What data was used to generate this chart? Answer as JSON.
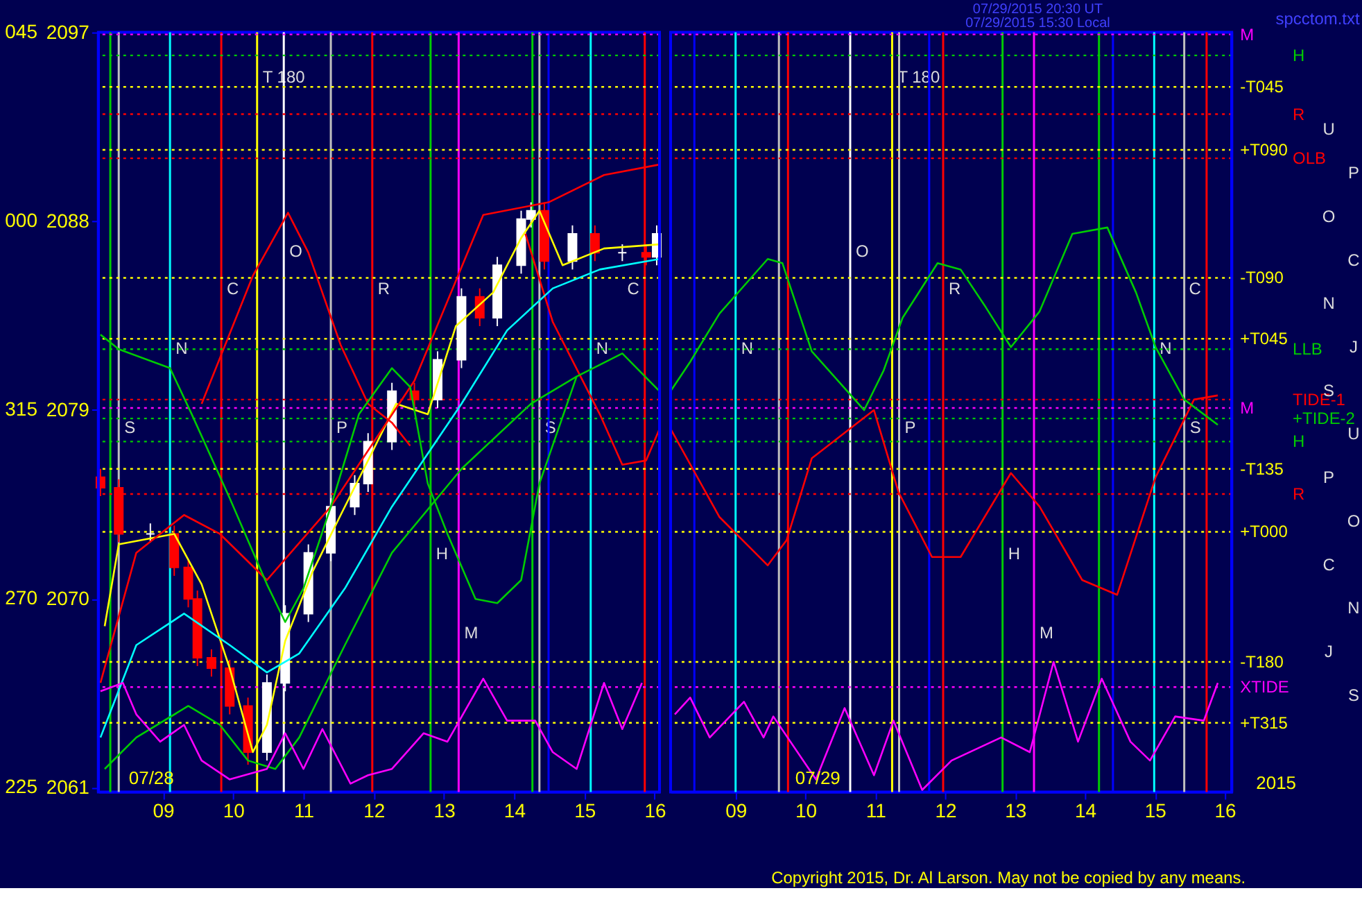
{
  "chart_data": [
    {
      "type": "candlestick",
      "x": [
        8.11,
        8.37,
        8.82,
        9.16,
        9.36,
        9.49,
        9.69,
        9.95,
        10.21,
        10.48,
        10.74,
        11.07,
        11.39,
        11.73,
        11.92,
        12.26,
        12.58,
        12.91,
        13.25,
        13.51,
        13.76,
        14.1,
        14.24,
        14.43,
        14.83,
        15.15,
        15.54,
        15.88,
        16.03
      ],
      "ohlc": [
        [
          2075.8,
          2076.2,
          2074.9,
          2075.3
        ],
        [
          2075.3,
          2075.7,
          2072.7,
          2073.1
        ],
        [
          2073.1,
          2073.6,
          2072.7,
          2073.1
        ],
        [
          2073.1,
          2073.5,
          2071.1,
          2071.5
        ],
        [
          2071.5,
          2071.9,
          2069.6,
          2070.0
        ],
        [
          2070.0,
          2070.4,
          2066.8,
          2067.2
        ],
        [
          2067.2,
          2067.6,
          2066.3,
          2066.7
        ],
        [
          2066.7,
          2067.1,
          2064.5,
          2064.9
        ],
        [
          2064.9,
          2065.3,
          2062.1,
          2062.7
        ],
        [
          2062.7,
          2066.4,
          2062.3,
          2066.0
        ],
        [
          2066.0,
          2069.7,
          2065.6,
          2069.3
        ],
        [
          2069.3,
          2072.6,
          2068.9,
          2072.2
        ],
        [
          2072.2,
          2074.8,
          2071.8,
          2074.4
        ],
        [
          2074.4,
          2075.9,
          2074.0,
          2075.5
        ],
        [
          2075.5,
          2077.9,
          2075.1,
          2077.5
        ],
        [
          2077.5,
          2080.3,
          2077.1,
          2079.9
        ],
        [
          2079.9,
          2080.3,
          2079.1,
          2079.5
        ],
        [
          2079.5,
          2081.8,
          2079.1,
          2081.4
        ],
        [
          2081.4,
          2084.8,
          2081.0,
          2084.4
        ],
        [
          2084.4,
          2084.8,
          2083.0,
          2083.4
        ],
        [
          2083.4,
          2086.3,
          2083.0,
          2085.9
        ],
        [
          2085.9,
          2088.5,
          2085.5,
          2088.1
        ],
        [
          2088.1,
          2088.9,
          2087.7,
          2088.5
        ],
        [
          2088.5,
          2088.9,
          2085.7,
          2086.1
        ],
        [
          2086.1,
          2087.8,
          2085.7,
          2087.4
        ],
        [
          2087.4,
          2087.8,
          2086.1,
          2086.5
        ],
        [
          2086.5,
          2086.9,
          2086.1,
          2086.5
        ],
        [
          2086.5,
          2086.9,
          2085.9,
          2086.3
        ],
        [
          2086.3,
          2087.8,
          2085.9,
          2087.4
        ]
      ],
      "xlim": [
        8.08,
        16.07
      ],
      "ylim": [
        2060.8,
        2097
      ],
      "xticks": [
        {
          "value": 9,
          "label": "09"
        },
        10,
        11,
        12,
        13,
        14,
        15,
        16
      ],
      "yticks": [
        2061,
        2070,
        2079,
        2088,
        2097
      ],
      "series": [
        {
          "type": "line",
          "color": "#ffff00",
          "x": [
            8.17,
            8.37,
            9.16,
            9.55,
            9.95,
            10.28,
            10.48,
            10.74,
            11.13,
            11.53,
            11.92,
            12.32,
            12.77,
            13.17,
            13.7,
            14.1,
            14.36,
            14.69,
            15.28,
            16.07
          ],
          "values": [
            2068.7,
            2072.6,
            2073.1,
            2070.7,
            2066.7,
            2062.7,
            2064.0,
            2068.0,
            2071.3,
            2074.0,
            2076.6,
            2079.3,
            2078.8,
            2083.0,
            2084.6,
            2087.2,
            2088.5,
            2085.9,
            2086.7,
            2086.9
          ]
        },
        {
          "type": "line",
          "color": "#ff0000",
          "x": [
            8.11,
            8.62,
            9.3,
            9.81,
            10.48,
            11.39,
            12.58,
            13.56,
            14.49,
            15.28,
            16.07
          ],
          "values": [
            2066.0,
            2072.2,
            2074.0,
            2073.1,
            2070.9,
            2074.4,
            2080.4,
            2088.3,
            2088.9,
            2090.2,
            2090.7
          ]
        },
        {
          "type": "line",
          "color": "#ff0000",
          "x": [
            9.55,
            10.28,
            10.78,
            11.07,
            11.53,
            11.92,
            12.26,
            12.52
          ],
          "values": [
            2079.3,
            2085.4,
            2088.4,
            2086.5,
            2082.1,
            2079.3,
            2078.4,
            2077.3
          ]
        },
        {
          "type": "line",
          "color": "#ff0000",
          "x": [
            14.16,
            14.55,
            15.22,
            15.54,
            15.88,
            16.07
          ],
          "values": [
            2087.4,
            2083.2,
            2078.8,
            2076.4,
            2076.6,
            2078.1
          ]
        },
        {
          "type": "line",
          "color": "#00cc00",
          "x": [
            8.11,
            8.37,
            9.1,
            9.41,
            9.95,
            10.48,
            10.74,
            11.0,
            11.39,
            11.79,
            12.26,
            12.52,
            12.77,
            13.05,
            13.45,
            13.76,
            14.1,
            14.36,
            14.89,
            15.54,
            16.07
          ],
          "values": [
            2082.6,
            2081.9,
            2081.0,
            2078.8,
            2074.8,
            2070.7,
            2068.9,
            2070.5,
            2074.4,
            2078.8,
            2081.0,
            2080.1,
            2075.5,
            2073.1,
            2070.0,
            2069.8,
            2070.9,
            2075.5,
            2080.6,
            2081.7,
            2079.9
          ]
        },
        {
          "type": "line",
          "color": "#00cc00",
          "x": [
            8.17,
            8.62,
            9.36,
            9.81,
            10.21,
            10.6,
            10.94,
            11.59,
            12.26,
            13.25,
            14.24,
            14.89
          ],
          "values": [
            2061.9,
            2063.4,
            2064.9,
            2064.0,
            2062.3,
            2061.9,
            2063.4,
            2067.8,
            2072.2,
            2076.2,
            2079.3,
            2080.6
          ]
        },
        {
          "type": "line",
          "color": "#00ffff",
          "x": [
            8.11,
            8.62,
            9.3,
            9.95,
            10.48,
            10.94,
            11.59,
            12.26,
            13.25,
            13.9,
            14.55,
            15.22,
            16.07
          ],
          "values": [
            2063.4,
            2067.8,
            2069.3,
            2067.8,
            2066.5,
            2067.4,
            2070.5,
            2074.4,
            2079.3,
            2082.8,
            2084.8,
            2085.7,
            2086.2
          ]
        },
        {
          "type": "line",
          "color": "#ff00ff",
          "x": [
            8.11,
            8.43,
            8.62,
            8.96,
            9.3,
            9.55,
            9.95,
            10.48,
            10.74,
            11.0,
            11.27,
            11.67,
            11.92,
            12.26,
            12.71,
            13.05,
            13.56,
            13.9,
            14.3,
            14.55,
            14.89,
            15.28,
            15.54,
            15.82
          ],
          "values": [
            2065.6,
            2066.0,
            2064.5,
            2063.2,
            2064.0,
            2062.3,
            2061.4,
            2061.9,
            2063.6,
            2061.9,
            2063.8,
            2061.2,
            2061.6,
            2061.9,
            2063.6,
            2063.2,
            2066.2,
            2064.2,
            2064.2,
            2062.7,
            2061.9,
            2066.0,
            2063.8,
            2066.0
          ]
        }
      ],
      "ref_lines": [
        {
          "axis": "x",
          "value": 8.25,
          "color": "#00cc00",
          "line_style": "solid"
        },
        {
          "axis": "x",
          "value": 8.37,
          "color": "#c0c0c0",
          "line_style": "solid",
          "label": "S"
        },
        {
          "axis": "x",
          "value": 9.1,
          "color": "#00ffff",
          "line_style": "solid",
          "label": "N"
        },
        {
          "axis": "x",
          "value": 9.83,
          "color": "#ff0000",
          "line_style": "solid",
          "label": "C"
        },
        {
          "axis": "x",
          "value": 10.34,
          "color": "#ffff00",
          "line_style": "solid",
          "label": "T  180"
        },
        {
          "axis": "x",
          "value": 10.72,
          "color": "#ffffff",
          "line_style": "solid",
          "label": "O"
        },
        {
          "axis": "x",
          "value": 11.39,
          "color": "#c0c0c0",
          "line_style": "solid",
          "label": "P"
        },
        {
          "axis": "x",
          "value": 11.98,
          "color": "#ff0000",
          "line_style": "solid",
          "label": "R"
        },
        {
          "axis": "x",
          "value": 12.81,
          "color": "#00cc00",
          "line_style": "solid",
          "label": "H"
        },
        {
          "axis": "x",
          "value": 13.21,
          "color": "#ff00ff",
          "line_style": "solid",
          "label": "M"
        },
        {
          "axis": "x",
          "value": 14.26,
          "color": "#00cc00",
          "line_style": "solid"
        },
        {
          "axis": "x",
          "value": 14.36,
          "color": "#c0c0c0",
          "line_style": "solid",
          "label": "S"
        },
        {
          "axis": "x",
          "value": 14.49,
          "color": "#0000ff",
          "line_style": "solid"
        },
        {
          "axis": "x",
          "value": 15.09,
          "color": "#00ffff",
          "line_style": "solid",
          "label": "N"
        },
        {
          "axis": "x",
          "value": 15.86,
          "color": "#ff0000",
          "line_style": "solid",
          "label": "C"
        },
        {
          "axis": "y",
          "value": 2096.9,
          "color": "#ff00ff",
          "line_style": "dotted"
        },
        {
          "axis": "y",
          "value": 2095.9,
          "color": "#00cc00",
          "line_style": "dotted"
        },
        {
          "axis": "y",
          "value": 2094.4,
          "color": "#ffff00",
          "line_style": "dotted"
        },
        {
          "axis": "y",
          "value": 2093.1,
          "color": "#ff0000",
          "line_style": "dotted"
        },
        {
          "axis": "y",
          "value": 2091.4,
          "color": "#ffff00",
          "line_style": "dotted"
        },
        {
          "axis": "y",
          "value": 2091.0,
          "color": "#ff0000",
          "line_style": "dotted"
        },
        {
          "axis": "y",
          "value": 2085.3,
          "color": "#ffff00",
          "line_style": "dotted"
        },
        {
          "axis": "y",
          "value": 2082.4,
          "color": "#ffff00",
          "line_style": "dotted"
        },
        {
          "axis": "y",
          "value": 2081.9,
          "color": "#00cc00",
          "line_style": "dotted"
        },
        {
          "axis": "y",
          "value": 2079.1,
          "color": "#ff00ff",
          "line_style": "dotted"
        },
        {
          "axis": "y",
          "value": 2079.5,
          "color": "#ff0000",
          "line_style": "dotted"
        },
        {
          "axis": "y",
          "value": 2078.6,
          "color": "#00cc00",
          "line_style": "dotted"
        },
        {
          "axis": "y",
          "value": 2077.5,
          "color": "#00cc00",
          "line_style": "dotted"
        },
        {
          "axis": "y",
          "value": 2076.2,
          "color": "#ffff00",
          "line_style": "dotted"
        },
        {
          "axis": "y",
          "value": 2075.0,
          "color": "#ff0000",
          "line_style": "dotted"
        },
        {
          "axis": "y",
          "value": 2073.2,
          "color": "#ffff00",
          "line_style": "dotted"
        },
        {
          "axis": "y",
          "value": 2067.0,
          "color": "#ffff00",
          "line_style": "dotted"
        },
        {
          "axis": "y",
          "value": 2065.8,
          "color": "#ff00ff",
          "line_style": "dotted"
        },
        {
          "axis": "y",
          "value": 2064.1,
          "color": "#ffff00",
          "line_style": "dotted"
        }
      ],
      "annotations": [
        "225",
        "270",
        "315",
        "000",
        "045",
        "07/28"
      ]
    },
    {
      "type": "line",
      "xlim": [
        8.07,
        16.1
      ],
      "ylim": [
        2060.8,
        2097
      ],
      "tick_labels": "x",
      "xticks": [
        {
          "value": 9,
          "label": "09"
        },
        10,
        11,
        12,
        13,
        14,
        15,
        16
      ],
      "series": [
        {
          "type": "line",
          "color": "#ff0000",
          "x": [
            8.07,
            8.77,
            9.46,
            9.73,
            10.09,
            10.98,
            11.33,
            11.81,
            12.22,
            12.94,
            13.35,
            13.96,
            14.46,
            15.01,
            15.56,
            15.9
          ],
          "values": [
            2078.1,
            2073.9,
            2071.6,
            2072.8,
            2076.7,
            2079.0,
            2075.1,
            2072.0,
            2072.0,
            2076.0,
            2074.4,
            2070.9,
            2070.2,
            2075.8,
            2079.5,
            2079.7
          ]
        },
        {
          "type": "line",
          "color": "#00cc00",
          "x": [
            8.07,
            8.35,
            8.77,
            9.46,
            9.67,
            10.09,
            10.84,
            11.12,
            11.39,
            11.89,
            12.22,
            12.58,
            12.94,
            13.35,
            13.82,
            14.32,
            14.73,
            15.01,
            15.42,
            15.9
          ],
          "values": [
            2079.9,
            2081.3,
            2083.6,
            2086.2,
            2086.0,
            2081.8,
            2079.0,
            2080.9,
            2083.4,
            2086.0,
            2085.7,
            2083.9,
            2082.0,
            2083.7,
            2087.4,
            2087.7,
            2084.6,
            2082.0,
            2079.5,
            2078.3
          ]
        },
        {
          "type": "line",
          "color": "#ff00ff",
          "x": [
            8.13,
            8.35,
            8.63,
            9.12,
            9.4,
            9.54,
            10.15,
            10.56,
            10.98,
            11.26,
            11.67,
            12.09,
            12.8,
            13.21,
            13.55,
            13.9,
            14.24,
            14.65,
            14.93,
            15.29,
            15.7,
            15.9
          ],
          "values": [
            2064.5,
            2065.3,
            2063.4,
            2065.1,
            2063.4,
            2064.4,
            2061.4,
            2064.8,
            2061.6,
            2064.2,
            2060.9,
            2062.3,
            2063.4,
            2062.7,
            2067.0,
            2063.2,
            2066.2,
            2063.2,
            2062.3,
            2064.4,
            2064.2,
            2066.0
          ]
        }
      ],
      "ref_lines": [
        {
          "axis": "x",
          "value": 8.41,
          "color": "#0000ff",
          "line_style": "solid"
        },
        {
          "axis": "x",
          "value": 9.0,
          "color": "#00ffff",
          "line_style": "solid",
          "label": "N"
        },
        {
          "axis": "x",
          "value": 9.62,
          "color": "#c0c0c0",
          "line_style": "solid"
        },
        {
          "axis": "x",
          "value": 9.75,
          "color": "#ff0000",
          "line_style": "solid"
        },
        {
          "axis": "x",
          "value": 10.64,
          "color": "#ffffff",
          "line_style": "solid",
          "label": "O"
        },
        {
          "axis": "x",
          "value": 11.24,
          "color": "#ffff00",
          "line_style": "solid",
          "label": "T  180"
        },
        {
          "axis": "x",
          "value": 11.34,
          "color": "#c0c0c0",
          "line_style": "solid",
          "label": "P"
        },
        {
          "axis": "x",
          "value": 11.77,
          "color": "#0000ff",
          "line_style": "solid"
        },
        {
          "axis": "x",
          "value": 11.97,
          "color": "#ff0000",
          "line_style": "solid",
          "label": "R"
        },
        {
          "axis": "x",
          "value": 12.82,
          "color": "#00cc00",
          "line_style": "solid",
          "label": "H"
        },
        {
          "axis": "x",
          "value": 13.27,
          "color": "#ff00ff",
          "line_style": "solid",
          "label": "M"
        },
        {
          "axis": "x",
          "value": 14.2,
          "color": "#00cc00",
          "line_style": "solid"
        },
        {
          "axis": "x",
          "value": 14.4,
          "color": "#0000ff",
          "line_style": "solid"
        },
        {
          "axis": "x",
          "value": 14.99,
          "color": "#00ffff",
          "line_style": "solid",
          "label": "N"
        },
        {
          "axis": "x",
          "value": 15.42,
          "color": "#c0c0c0",
          "line_style": "solid",
          "label": "S"
        },
        {
          "axis": "x",
          "value": 15.74,
          "color": "#ff0000",
          "line_style": "solid",
          "label": "C"
        },
        {
          "axis": "y",
          "value": 2096.9,
          "label": "M",
          "color": "#ff00ff",
          "line_style": "dotted"
        },
        {
          "axis": "y",
          "value": 2095.9,
          "label": "H",
          "color": "#00cc00",
          "line_style": "dotted"
        },
        {
          "axis": "y",
          "value": 2094.4,
          "label": "-T045",
          "color": "#ffff00",
          "line_style": "dotted"
        },
        {
          "axis": "y",
          "value": 2093.1,
          "label": "R",
          "color": "#ff0000",
          "line_style": "dotted"
        },
        {
          "axis": "y",
          "value": 2091.4,
          "label": "+T090",
          "color": "#ffff00",
          "line_style": "dotted"
        },
        {
          "axis": "y",
          "value": 2091.0,
          "label": "OLB",
          "color": "#ff0000",
          "line_style": "dotted"
        },
        {
          "axis": "y",
          "value": 2085.3,
          "label": "-T090",
          "color": "#ffff00",
          "line_style": "dotted"
        },
        {
          "axis": "y",
          "value": 2082.4,
          "label": "+T045",
          "color": "#ffff00",
          "line_style": "dotted"
        },
        {
          "axis": "y",
          "value": 2081.9,
          "label": "LLB",
          "color": "#00cc00",
          "line_style": "dotted"
        },
        {
          "axis": "y",
          "value": 2079.1,
          "label": "M",
          "color": "#ff00ff",
          "line_style": "dotted"
        },
        {
          "axis": "y",
          "value": 2079.5,
          "label": "TIDE-1",
          "color": "#ff0000",
          "line_style": "dotted"
        },
        {
          "axis": "y",
          "value": 2078.6,
          "label": "+TIDE-2",
          "color": "#00cc00",
          "line_style": "dotted"
        },
        {
          "axis": "y",
          "value": 2077.5,
          "label": "H",
          "color": "#00cc00",
          "line_style": "dotted"
        },
        {
          "axis": "y",
          "value": 2076.2,
          "label": "-T135",
          "color": "#ffff00",
          "line_style": "dotted"
        },
        {
          "axis": "y",
          "value": 2075.0,
          "label": "R",
          "color": "#ff0000",
          "line_style": "dotted"
        },
        {
          "axis": "y",
          "value": 2073.2,
          "label": "+T000",
          "color": "#ffff00",
          "line_style": "dotted"
        },
        {
          "axis": "y",
          "value": 2067.0,
          "label": "-T180",
          "color": "#ffff00",
          "line_style": "dotted"
        },
        {
          "axis": "y",
          "value": 2065.8,
          "label": "XTIDE",
          "color": "#ff00ff",
          "line_style": "dotted"
        },
        {
          "axis": "y",
          "value": 2064.1,
          "label": "+T315",
          "color": "#ffff00",
          "line_style": "dotted"
        }
      ],
      "annotations": [
        "07/29",
        "07/29/2015 20:30 UT",
        "07/29/2015 15:30 Local",
        "spcctom.txt",
        "2015",
        "Copyright 2015, Dr. Al Larson. May not be copied by any means.",
        "U",
        "P",
        "O",
        "C",
        "N",
        "J",
        "S",
        "U",
        "P",
        "O",
        "C",
        "N",
        "J",
        "S"
      ]
    }
  ]
}
